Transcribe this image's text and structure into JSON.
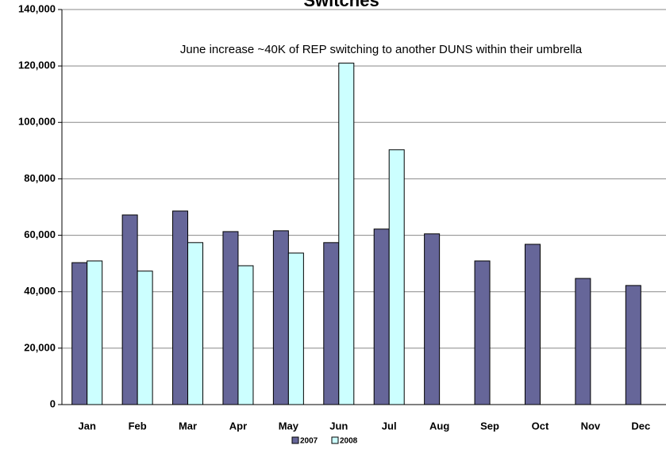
{
  "chart_data": {
    "type": "bar",
    "title": "Switches",
    "annotation": "June increase ~40K of REP switching to another DUNS within their umbrella",
    "categories": [
      "Jan",
      "Feb",
      "Mar",
      "Apr",
      "May",
      "Jun",
      "Jul",
      "Aug",
      "Sep",
      "Oct",
      "Nov",
      "Dec"
    ],
    "series": [
      {
        "name": "2007",
        "color": "#666699",
        "values": [
          50300,
          67200,
          68600,
          61300,
          61600,
          57400,
          62200,
          60500,
          50900,
          56800,
          44700,
          42200
        ]
      },
      {
        "name": "2008",
        "color": "#ccffff",
        "values": [
          50900,
          47300,
          57400,
          49200,
          53700,
          121000,
          90300,
          null,
          null,
          null,
          null,
          null
        ]
      }
    ],
    "ylim": [
      0,
      140000
    ],
    "yticks": [
      0,
      {
        "value": 20000,
        "label": "20,000"
      },
      {
        "value": 40000,
        "label": "40,000"
      },
      {
        "value": 60000,
        "label": "60,000"
      },
      {
        "value": 80000,
        "label": "80,000"
      },
      {
        "value": 100000,
        "label": "100,000"
      },
      {
        "value": 120000,
        "label": "120,000"
      },
      {
        "value": 140000,
        "label": "140,000"
      }
    ],
    "grid": true,
    "legend": "bottom"
  }
}
